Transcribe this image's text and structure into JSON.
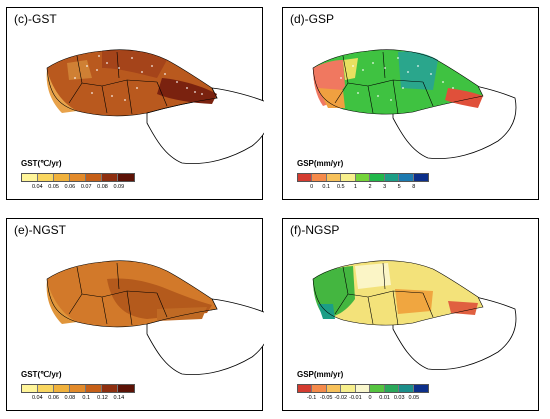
{
  "panels": [
    {
      "id": "c",
      "title": "(c)-GST",
      "legend_title": "GST(℃/yr)",
      "legend_colors": [
        "#fff599",
        "#f9d65f",
        "#f0b13c",
        "#e28a2a",
        "#c65f17",
        "#8e2f0f",
        "#5c1206"
      ],
      "tick_labels": [
        "0.04",
        "0.05",
        "0.06",
        "0.07",
        "0.08",
        "0.09"
      ],
      "map_colors": {
        "main": "#b9591e",
        "mid": "#a5441a",
        "dark": "#7a220f",
        "light": "#d58a3a",
        "edge": "#e8a24a"
      },
      "speckle_color": "#ffffff"
    },
    {
      "id": "d",
      "title": "(d)-GSP",
      "legend_title": "GSP(mm/yr)",
      "legend_colors": [
        "#d43c30",
        "#f58a4a",
        "#f7c15a",
        "#f7ef8c",
        "#74d43a",
        "#22b84a",
        "#1b9e86",
        "#1c7ab0",
        "#0c2f8a"
      ],
      "tick_labels": [
        "0",
        "0.1",
        "0.5",
        "1",
        "2",
        "3",
        "5",
        "8"
      ],
      "map_colors": {
        "main": "#3fc241",
        "west": "#f07860",
        "teal": "#2aa68c",
        "south": "#f0a040",
        "se": "#e0503a",
        "yellow": "#e8e060"
      },
      "speckle_color": "#ffffff"
    },
    {
      "id": "e",
      "title": "(e)-NGST",
      "legend_title": "GST(℃/yr)",
      "legend_colors": [
        "#fff599",
        "#f9d65f",
        "#f0b13c",
        "#e28a2a",
        "#c65f17",
        "#8e2f0f",
        "#5c1206"
      ],
      "tick_labels": [
        "0.04",
        "0.06",
        "0.08",
        "0.1",
        "0.12",
        "0.14"
      ],
      "map_colors": {
        "main": "#d2792a",
        "dark": "#b45a1c",
        "light": "#e0953a",
        "east": "#c06a24"
      }
    },
    {
      "id": "f",
      "title": "(f)-NGSP",
      "legend_title": "GSP(mm/yr)",
      "legend_colors": [
        "#d43c30",
        "#f58a4a",
        "#f7c15a",
        "#f7ef8c",
        "#f9f7cc",
        "#56c440",
        "#2aa85a",
        "#1b8e8a",
        "#0c2f8a"
      ],
      "tick_labels": [
        "-0.1",
        "-0.05",
        "-0.02",
        "-0.01",
        "0",
        "0.01",
        "0.03",
        "0.05"
      ],
      "map_colors": {
        "main": "#f3e27a",
        "west": "#44b640",
        "pale": "#fbf5c6",
        "orange": "#f0a640",
        "teal": "#1c9e86",
        "red": "#e06040"
      }
    }
  ]
}
